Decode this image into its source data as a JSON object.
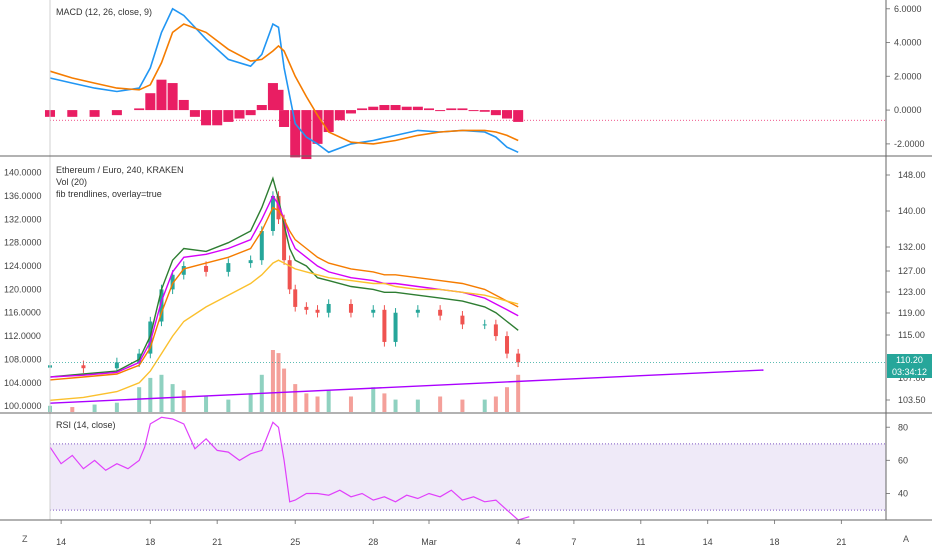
{
  "chart_data": [
    {
      "type": "line",
      "title": "MACD (12, 26, close, 9)",
      "yticks": [
        "6.0000",
        "4.0000",
        "2.0000",
        "0.0000",
        "-2.0000"
      ],
      "ylim": [
        -2.6,
        6.4
      ],
      "zero_line_value": -0.6,
      "series": [
        {
          "color": "#2196f3",
          "x": [
            0,
            4,
            8,
            12,
            16,
            18,
            20,
            22,
            24,
            28,
            32,
            36,
            38,
            40,
            41,
            42,
            44,
            46,
            48,
            50,
            54,
            58,
            62,
            66,
            70,
            74,
            78,
            80,
            82,
            84
          ],
          "values": [
            1.9,
            1.6,
            1.3,
            1.1,
            1.3,
            2.5,
            4.6,
            6.0,
            5.6,
            4.2,
            3.0,
            2.6,
            3.3,
            5.1,
            4.9,
            2.5,
            -0.8,
            -1.6,
            -2.0,
            -2.5,
            -2.0,
            -1.8,
            -1.5,
            -1.2,
            -1.3,
            -1.2,
            -1.3,
            -1.6,
            -2.2,
            -2.5
          ]
        },
        {
          "color": "#f57c00",
          "x": [
            0,
            4,
            8,
            12,
            16,
            18,
            20,
            22,
            24,
            28,
            32,
            36,
            38,
            40,
            41,
            42,
            44,
            46,
            48,
            50,
            54,
            58,
            62,
            66,
            70,
            74,
            78,
            80,
            82,
            84
          ],
          "values": [
            2.3,
            1.9,
            1.6,
            1.3,
            1.2,
            1.5,
            2.8,
            4.6,
            5.1,
            4.6,
            3.6,
            2.9,
            3.0,
            3.5,
            3.8,
            3.5,
            2.0,
            0.8,
            -0.3,
            -1.3,
            -1.9,
            -2.0,
            -1.8,
            -1.5,
            -1.3,
            -1.2,
            -1.2,
            -1.3,
            -1.5,
            -1.8
          ]
        }
      ],
      "histogram": {
        "color": "#e91e63",
        "x": [
          0,
          4,
          8,
          12,
          16,
          18,
          20,
          22,
          24,
          26,
          28,
          30,
          32,
          34,
          36,
          38,
          40,
          41,
          42,
          44,
          46,
          48,
          50,
          52,
          54,
          56,
          58,
          60,
          62,
          64,
          66,
          68,
          70,
          72,
          74,
          76,
          78,
          80,
          82,
          84
        ],
        "values": [
          -0.4,
          -0.4,
          -0.4,
          -0.3,
          0.1,
          1.0,
          1.8,
          1.6,
          0.6,
          -0.4,
          -0.9,
          -0.9,
          -0.7,
          -0.5,
          -0.3,
          0.3,
          1.6,
          1.2,
          -1.0,
          -2.8,
          -2.9,
          -2.0,
          -1.3,
          -0.6,
          -0.2,
          0.1,
          0.2,
          0.3,
          0.3,
          0.2,
          0.2,
          0.1,
          0.0,
          0.1,
          0.1,
          0.0,
          -0.1,
          -0.3,
          -0.5,
          -0.7
        ]
      }
    },
    {
      "type": "candlestick",
      "title": "Ethereum / Euro, 240, KRAKEN",
      "legend": [
        "Vol (20)",
        "fib trendlines, overlay=true"
      ],
      "yticks_left": [
        "140.0000",
        "136.0000",
        "132.0000",
        "128.0000",
        "124.0000",
        "120.0000",
        "116.0000",
        "112.0000",
        "108.0000",
        "104.0000",
        "100.0000"
      ],
      "ylim_left": [
        99.0,
        142.5
      ],
      "yticks_right": [
        "148.00",
        "140.00",
        "132.00",
        "127.00",
        "123.00",
        "119.00",
        "115.00",
        "103.50"
      ],
      "price_label": "110.20",
      "countdown_label": "03:34:12",
      "partial_label": "107.00",
      "candles_x": [
        0,
        6,
        12,
        16,
        18,
        20,
        22,
        24,
        28,
        32,
        36,
        38,
        40,
        41,
        42,
        43,
        44,
        46,
        48,
        50,
        54,
        58,
        60,
        62,
        66,
        70,
        74,
        78,
        80,
        82,
        84
      ],
      "close": [
        107.0,
        106.5,
        107.5,
        109.0,
        114.5,
        120.0,
        122.5,
        124.0,
        123.0,
        124.5,
        125.0,
        130.0,
        136.0,
        132.0,
        125.0,
        120.0,
        117.0,
        116.5,
        116.0,
        117.5,
        116.0,
        116.5,
        111.0,
        116.0,
        116.5,
        115.5,
        114.0,
        114.0,
        112.0,
        109.0,
        107.5
      ],
      "ma_series": [
        {
          "color": "#2e7d32",
          "values": [
            105.0,
            105.5,
            106.0,
            108.0,
            112.0,
            120.0,
            125.0,
            127.0,
            126.5,
            128.0,
            130.0,
            134.0,
            139.0,
            135.5,
            131.0,
            127.0,
            125.0,
            124.0,
            122.0,
            121.5,
            120.5,
            120.0,
            119.5,
            119.5,
            119.0,
            118.5,
            118.0,
            117.0,
            116.0,
            114.5,
            113.0
          ]
        },
        {
          "color": "#d500f9",
          "values": [
            105.0,
            105.3,
            105.8,
            107.5,
            111.0,
            118.0,
            123.0,
            125.5,
            126.0,
            127.0,
            128.5,
            132.0,
            136.0,
            134.5,
            132.0,
            129.0,
            127.0,
            125.5,
            124.0,
            123.0,
            122.0,
            121.5,
            121.0,
            121.0,
            120.5,
            120.0,
            119.5,
            118.5,
            117.5,
            116.5,
            115.5
          ]
        },
        {
          "color": "#f57c00",
          "values": [
            104.5,
            105.0,
            105.5,
            107.0,
            110.0,
            116.0,
            121.0,
            123.5,
            124.5,
            125.5,
            127.0,
            130.0,
            134.0,
            133.5,
            132.0,
            130.0,
            128.5,
            127.0,
            125.5,
            124.5,
            123.5,
            123.0,
            122.5,
            122.5,
            122.0,
            121.5,
            121.0,
            120.0,
            119.0,
            118.0,
            117.0
          ]
        },
        {
          "color": "#fbc02d",
          "values": [
            101.0,
            101.5,
            102.5,
            104.0,
            106.0,
            109.0,
            112.0,
            114.5,
            117.0,
            119.0,
            121.0,
            122.5,
            124.5,
            125.0,
            124.5,
            124.0,
            123.5,
            123.0,
            122.5,
            122.0,
            121.5,
            121.0,
            121.0,
            120.5,
            120.0,
            120.0,
            119.5,
            119.0,
            118.5,
            118.0,
            117.5
          ]
        }
      ],
      "trendline": {
        "color": "#aa00ff",
        "x": [
          0,
          128
        ],
        "values": [
          100.5,
          106.2
        ]
      },
      "volume_x": [
        0,
        4,
        8,
        12,
        16,
        18,
        20,
        22,
        24,
        28,
        32,
        36,
        38,
        40,
        41,
        42,
        44,
        46,
        48,
        50,
        54,
        58,
        60,
        62,
        66,
        70,
        74,
        78,
        80,
        82,
        84
      ],
      "volume": [
        0.1,
        0.08,
        0.12,
        0.15,
        0.4,
        0.55,
        0.6,
        0.45,
        0.35,
        0.25,
        0.2,
        0.3,
        0.6,
        1.0,
        0.95,
        0.7,
        0.45,
        0.3,
        0.25,
        0.35,
        0.25,
        0.4,
        0.3,
        0.2,
        0.2,
        0.25,
        0.2,
        0.2,
        0.25,
        0.4,
        0.6
      ],
      "volume_up_color": "#8fd1c0",
      "volume_down_color": "#f4a09a",
      "up_color": "#26a69a",
      "down_color": "#ef5350"
    },
    {
      "type": "line",
      "title": "RSI (14, close)",
      "yticks": [
        "80",
        "60",
        "40"
      ],
      "ylim": [
        24,
        88
      ],
      "band": [
        30,
        70
      ],
      "series": [
        {
          "color": "#e040fb",
          "x": [
            0,
            2,
            4,
            6,
            8,
            10,
            12,
            14,
            16,
            17,
            18,
            20,
            22,
            24,
            26,
            28,
            30,
            32,
            34,
            36,
            38,
            40,
            41,
            42,
            43,
            44,
            46,
            48,
            50,
            52,
            54,
            56,
            58,
            60,
            62,
            64,
            66,
            68,
            70,
            72,
            74,
            76,
            78,
            80,
            82,
            84,
            86
          ],
          "values": [
            68,
            58,
            63,
            55,
            60,
            54,
            58,
            55,
            60,
            68,
            82,
            86,
            85,
            82,
            67,
            73,
            66,
            65,
            60,
            64,
            66,
            83,
            80,
            60,
            35,
            36,
            40,
            40,
            39,
            42,
            38,
            40,
            36,
            38,
            35,
            39,
            37,
            40,
            38,
            42,
            36,
            38,
            35,
            36,
            30,
            24,
            26
          ]
        }
      ]
    }
  ],
  "xaxis": {
    "ticks": [
      {
        "x": 2,
        "label": "14"
      },
      {
        "x": 18,
        "label": "18"
      },
      {
        "x": 30,
        "label": "21"
      },
      {
        "x": 44,
        "label": "25"
      },
      {
        "x": 58,
        "label": "28"
      },
      {
        "x": 68,
        "label": "Mar"
      },
      {
        "x": 84,
        "label": "4"
      },
      {
        "x": 94,
        "label": "7"
      },
      {
        "x": 106,
        "label": "11"
      },
      {
        "x": 118,
        "label": "14"
      },
      {
        "x": 130,
        "label": "18"
      },
      {
        "x": 142,
        "label": "21"
      }
    ],
    "xlim": [
      0,
      150
    ]
  },
  "corner_left": "Z",
  "corner_right": "A"
}
